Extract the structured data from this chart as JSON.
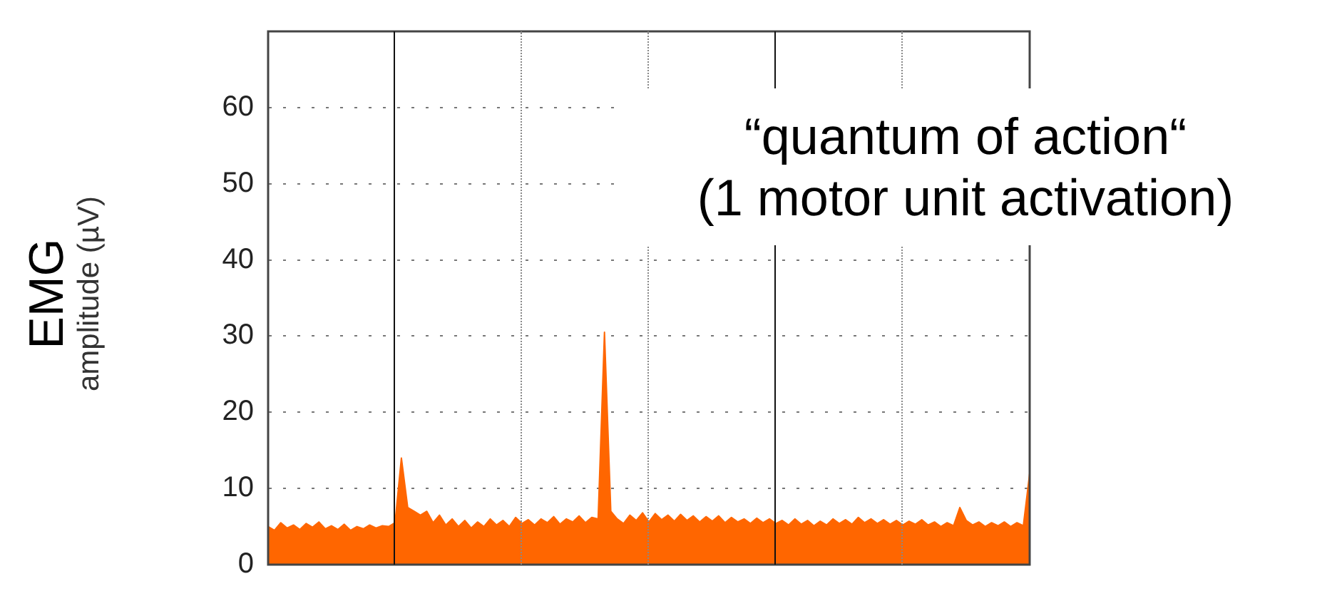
{
  "chart_data": {
    "type": "area",
    "ylabel": "EMG\namplitude (µV)",
    "annotations": [
      "“quantum of action“\n(1 motor unit activation)"
    ],
    "categories": [
      null,
      null,
      null,
      null,
      null,
      null,
      null,
      null,
      null,
      null,
      null,
      null,
      null,
      null,
      null,
      null,
      null,
      null,
      null,
      null,
      null,
      null,
      null,
      null,
      null,
      null,
      null,
      null,
      null,
      null,
      null,
      null,
      null,
      null,
      null,
      null,
      null,
      null,
      null,
      null,
      null,
      null,
      null,
      null,
      null,
      null,
      null,
      null,
      null,
      null,
      null,
      null,
      null,
      null,
      null,
      null,
      null,
      null,
      null,
      null,
      null,
      null,
      null,
      null,
      null,
      null,
      null,
      null,
      null,
      null,
      null,
      null,
      null,
      null,
      null,
      null,
      null,
      null,
      null,
      null,
      null,
      null,
      null,
      null,
      null,
      null,
      null,
      null,
      null,
      null,
      null,
      null,
      null,
      null,
      null,
      null,
      null,
      null,
      null,
      null,
      null,
      null,
      null,
      null,
      null,
      null,
      null,
      null,
      null,
      null,
      null,
      null,
      null,
      null,
      null,
      null,
      null,
      null,
      null,
      null,
      null
    ],
    "ylim": [
      0,
      70
    ],
    "yticks": [
      0,
      10,
      20,
      30,
      40,
      50,
      60
    ],
    "grid": "y",
    "tick_labels": "y",
    "series": [
      {
        "color": "#ff6600",
        "values": [
          5.0,
          4.5,
          5.5,
          4.8,
          5.2,
          4.6,
          5.4,
          4.9,
          5.6,
          4.7,
          5.1,
          4.6,
          5.3,
          4.5,
          5.0,
          4.7,
          5.2,
          4.8,
          5.1,
          5.0,
          5.5,
          14,
          7.5,
          7.0,
          6.5,
          7.0,
          5.5,
          6.5,
          5.2,
          6.0,
          5.0,
          5.8,
          4.8,
          5.6,
          5.0,
          6.0,
          5.2,
          5.8,
          5.0,
          6.2,
          5.4,
          5.9,
          5.2,
          6.0,
          5.5,
          6.3,
          5.3,
          6.0,
          5.6,
          6.4,
          5.5,
          6.2,
          6.0,
          30.5,
          7.0,
          6.0,
          5.4,
          6.5,
          5.8,
          6.8,
          5.6,
          6.7,
          5.9,
          6.5,
          5.7,
          6.6,
          5.8,
          6.4,
          5.6,
          6.3,
          5.7,
          6.4,
          5.5,
          6.2,
          5.6,
          6.0,
          5.4,
          6.1,
          5.5,
          6.0,
          5.4,
          5.8,
          5.2,
          6.0,
          5.3,
          5.8,
          5.1,
          5.7,
          5.2,
          6.0,
          5.4,
          5.9,
          5.3,
          6.2,
          5.5,
          6.0,
          5.4,
          5.9,
          5.3,
          5.8,
          5.2,
          5.7,
          5.3,
          5.9,
          5.2,
          5.6,
          5.0,
          5.5,
          5.1,
          7.5,
          5.8,
          5.2,
          5.6,
          5.0,
          5.5,
          5.1,
          5.6,
          5.0,
          5.5,
          5.1,
          12
        ]
      }
    ]
  }
}
